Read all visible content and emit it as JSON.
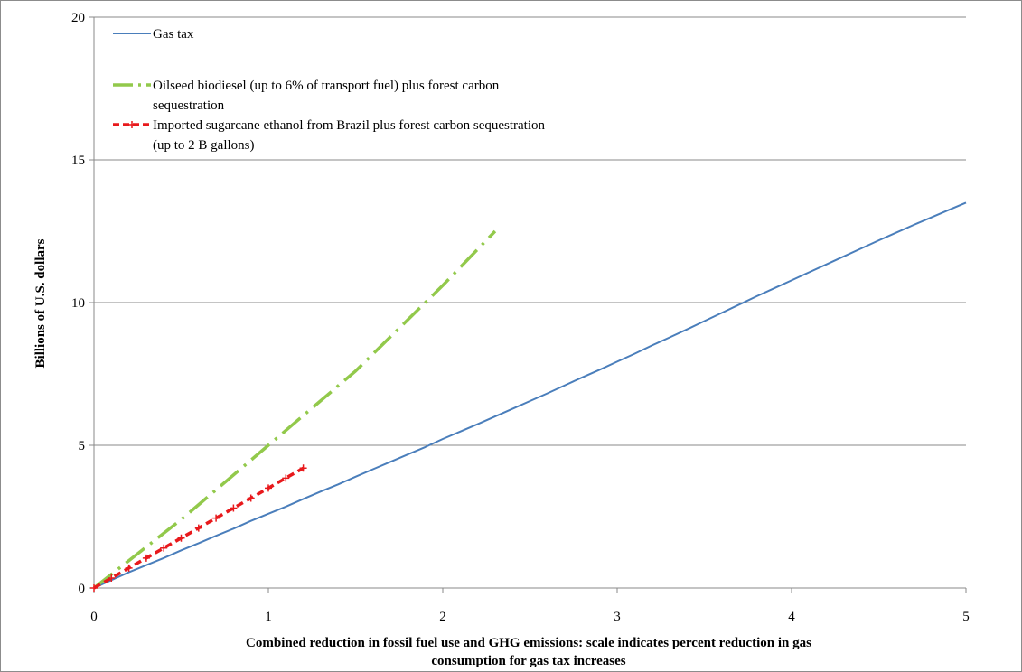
{
  "chart_data": {
    "type": "line",
    "title": "",
    "xlabel": "Combined reduction in fossil fuel use and GHG emissions:  scale indicates  percent reduction in gas consumption for gas tax increases",
    "xlabel_lines": [
      "Combined reduction in fossil fuel use and GHG emissions:  scale indicates  percent reduction in gas",
      "consumption for gas tax increases"
    ],
    "ylabel": "Billions of  U.S. dollars",
    "xlim": [
      0,
      5
    ],
    "ylim": [
      0,
      20
    ],
    "x_ticks": [
      "0",
      "1",
      "2",
      "3",
      "4",
      "5"
    ],
    "y_ticks": [
      "0",
      "5",
      "10",
      "15",
      "20"
    ],
    "grid": "horizontal",
    "legend_position": "top-left",
    "series": [
      {
        "name": "Gas tax",
        "legend_lines": [
          "Gas tax"
        ],
        "color": "#4a7ebb",
        "style": "solid",
        "x": [
          0,
          0.1,
          0.2,
          0.3,
          0.4,
          0.5,
          0.6,
          0.7,
          0.8,
          0.9,
          1.0,
          1.1,
          1.2,
          1.3,
          1.4,
          1.5,
          1.6,
          1.7,
          1.8,
          1.9,
          2.0,
          2.1,
          2.2,
          2.3,
          2.4,
          2.5,
          2.6,
          2.7,
          2.8,
          2.9,
          3.0,
          3.1,
          3.2,
          3.3,
          3.4,
          3.5,
          3.6,
          3.7,
          3.8,
          3.9,
          4.0,
          4.1,
          4.2,
          4.3,
          4.4,
          4.5,
          4.6,
          4.7,
          4.8,
          4.9,
          5.0
        ],
        "y": [
          0,
          0.28,
          0.55,
          0.8,
          1.05,
          1.32,
          1.57,
          1.83,
          2.08,
          2.35,
          2.6,
          2.85,
          3.12,
          3.38,
          3.63,
          3.9,
          4.16,
          4.42,
          4.68,
          4.94,
          5.22,
          5.48,
          5.74,
          6.01,
          6.28,
          6.55,
          6.82,
          7.1,
          7.38,
          7.65,
          7.93,
          8.21,
          8.5,
          8.78,
          9.06,
          9.35,
          9.64,
          9.93,
          10.22,
          10.5,
          10.78,
          11.06,
          11.34,
          11.62,
          11.9,
          12.18,
          12.45,
          12.72,
          12.98,
          13.24,
          13.5
        ]
      },
      {
        "name": "Oilseed biodiesel (up to 6% of transport fuel) plus forest carbon sequestration",
        "legend_lines": [
          "Oilseed biodiesel (up to 6%  of transport fuel) plus forest carbon",
          "sequestration"
        ],
        "color": "#92c94b",
        "style": "dash-dot",
        "x": [
          0,
          0.5,
          1.0,
          1.5,
          2.0,
          2.3
        ],
        "y": [
          0,
          2.4,
          5.0,
          7.6,
          10.6,
          12.5
        ]
      },
      {
        "name": "Imported sugarcane ethanol from Brazil plus forest carbon sequestration (up to 2 B gallons)",
        "legend_lines": [
          "Imported sugarcane ethanol from Brazil plus forest carbon sequestration",
          "(up to 2 B  gallons)"
        ],
        "color": "#e8191c",
        "style": "dashed-plus-markers",
        "x": [
          0,
          0.1,
          0.2,
          0.3,
          0.4,
          0.5,
          0.6,
          0.7,
          0.8,
          0.9,
          1.0,
          1.1,
          1.2
        ],
        "y": [
          0,
          0.35,
          0.7,
          1.05,
          1.4,
          1.75,
          2.1,
          2.45,
          2.8,
          3.15,
          3.5,
          3.85,
          4.2
        ]
      }
    ]
  }
}
